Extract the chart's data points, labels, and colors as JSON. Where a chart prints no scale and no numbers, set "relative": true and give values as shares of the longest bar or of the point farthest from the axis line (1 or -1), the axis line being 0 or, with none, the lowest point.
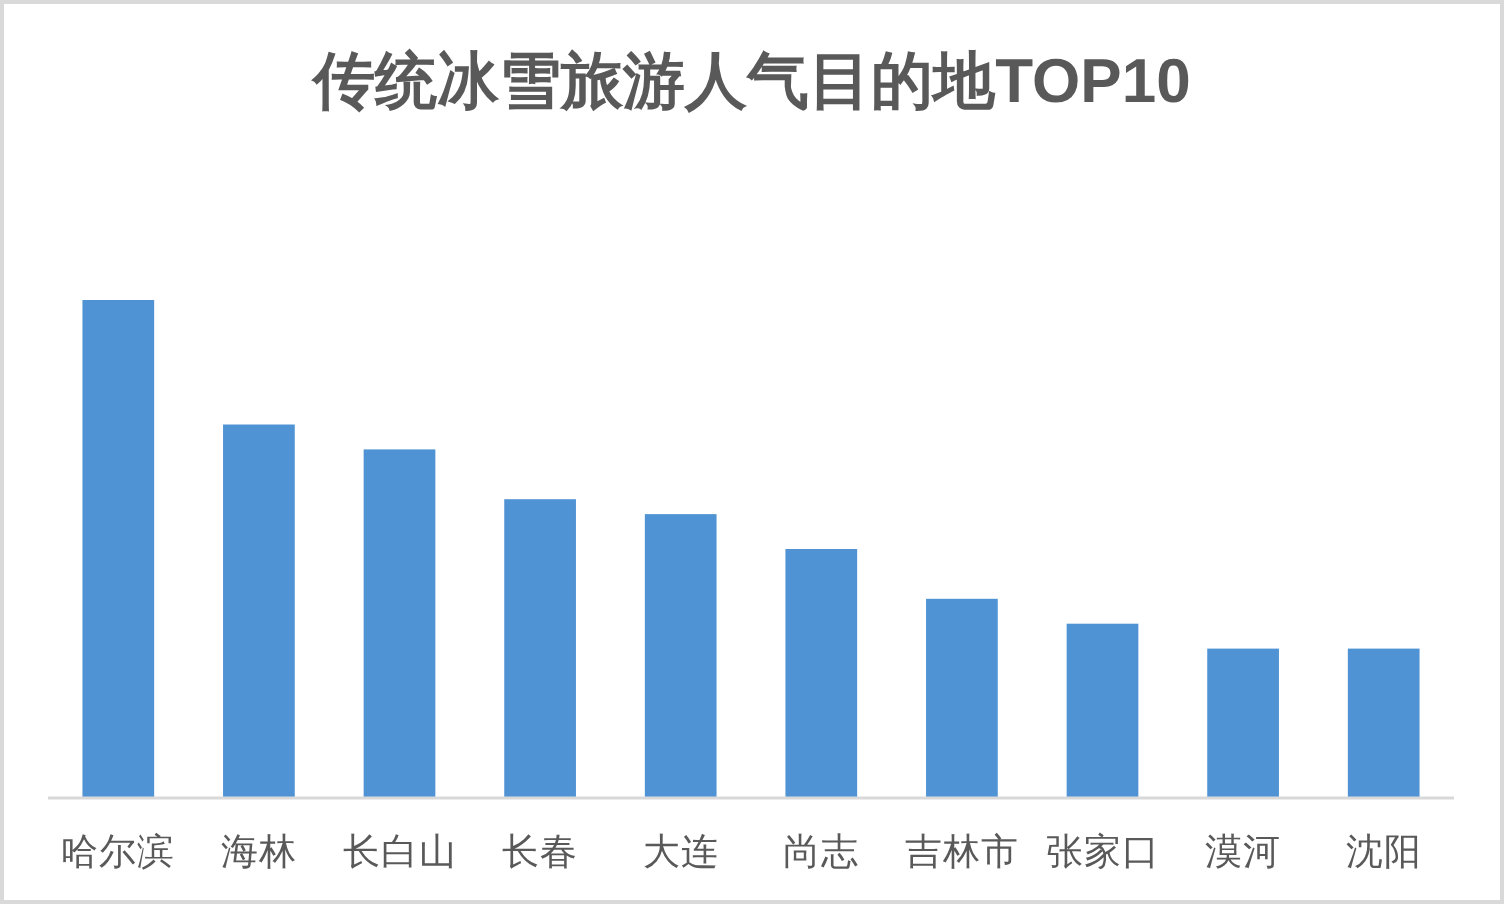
{
  "chart_data": {
    "type": "bar",
    "title": "传统冰雪旅游人气目的地TOP10",
    "categories": [
      "哈尔滨",
      "海林",
      "长白山",
      "长春",
      "大连",
      "尚志",
      "吉林市",
      "张家口",
      "漠河",
      "沈阳"
    ],
    "values": [
      1,
      0.75,
      0.7,
      0.6,
      0.57,
      0.5,
      0.4,
      0.35,
      0.3,
      0.3
    ],
    "color": "#5093d5",
    "relative": true
  }
}
